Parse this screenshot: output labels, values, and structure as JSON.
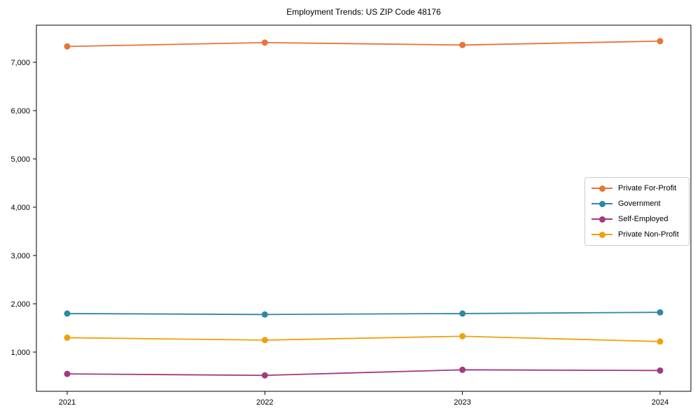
{
  "title": "Employment Trends: US ZIP Code 48176",
  "chart_data": {
    "type": "line",
    "title": "Employment Trends: US ZIP Code 48176",
    "xlabel": "",
    "ylabel": "",
    "categories": [
      "2021",
      "2022",
      "2023",
      "2024"
    ],
    "x": [
      2021,
      2022,
      2023,
      2024
    ],
    "series": [
      {
        "name": "Private For-Profit",
        "color": "#e8743b",
        "values": [
          7330,
          7410,
          7360,
          7440
        ]
      },
      {
        "name": "Government",
        "color": "#2f87a6",
        "values": [
          1800,
          1780,
          1800,
          1825
        ]
      },
      {
        "name": "Self-Employed",
        "color": "#a23a80",
        "values": [
          550,
          520,
          635,
          620
        ]
      },
      {
        "name": "Private Non-Profit",
        "color": "#f0a10c",
        "values": [
          1300,
          1250,
          1330,
          1220
        ]
      }
    ],
    "ylim": [
      190,
      7770
    ],
    "yticks": [
      1000,
      2000,
      3000,
      4000,
      5000,
      6000,
      7000
    ],
    "ytick_labels": [
      "1,000",
      "2,000",
      "3,000",
      "4,000",
      "5,000",
      "6,000",
      "7,000"
    ],
    "grid": false,
    "legend_position": "right",
    "frame_color": "#000000",
    "background_color": "#ffffff"
  }
}
